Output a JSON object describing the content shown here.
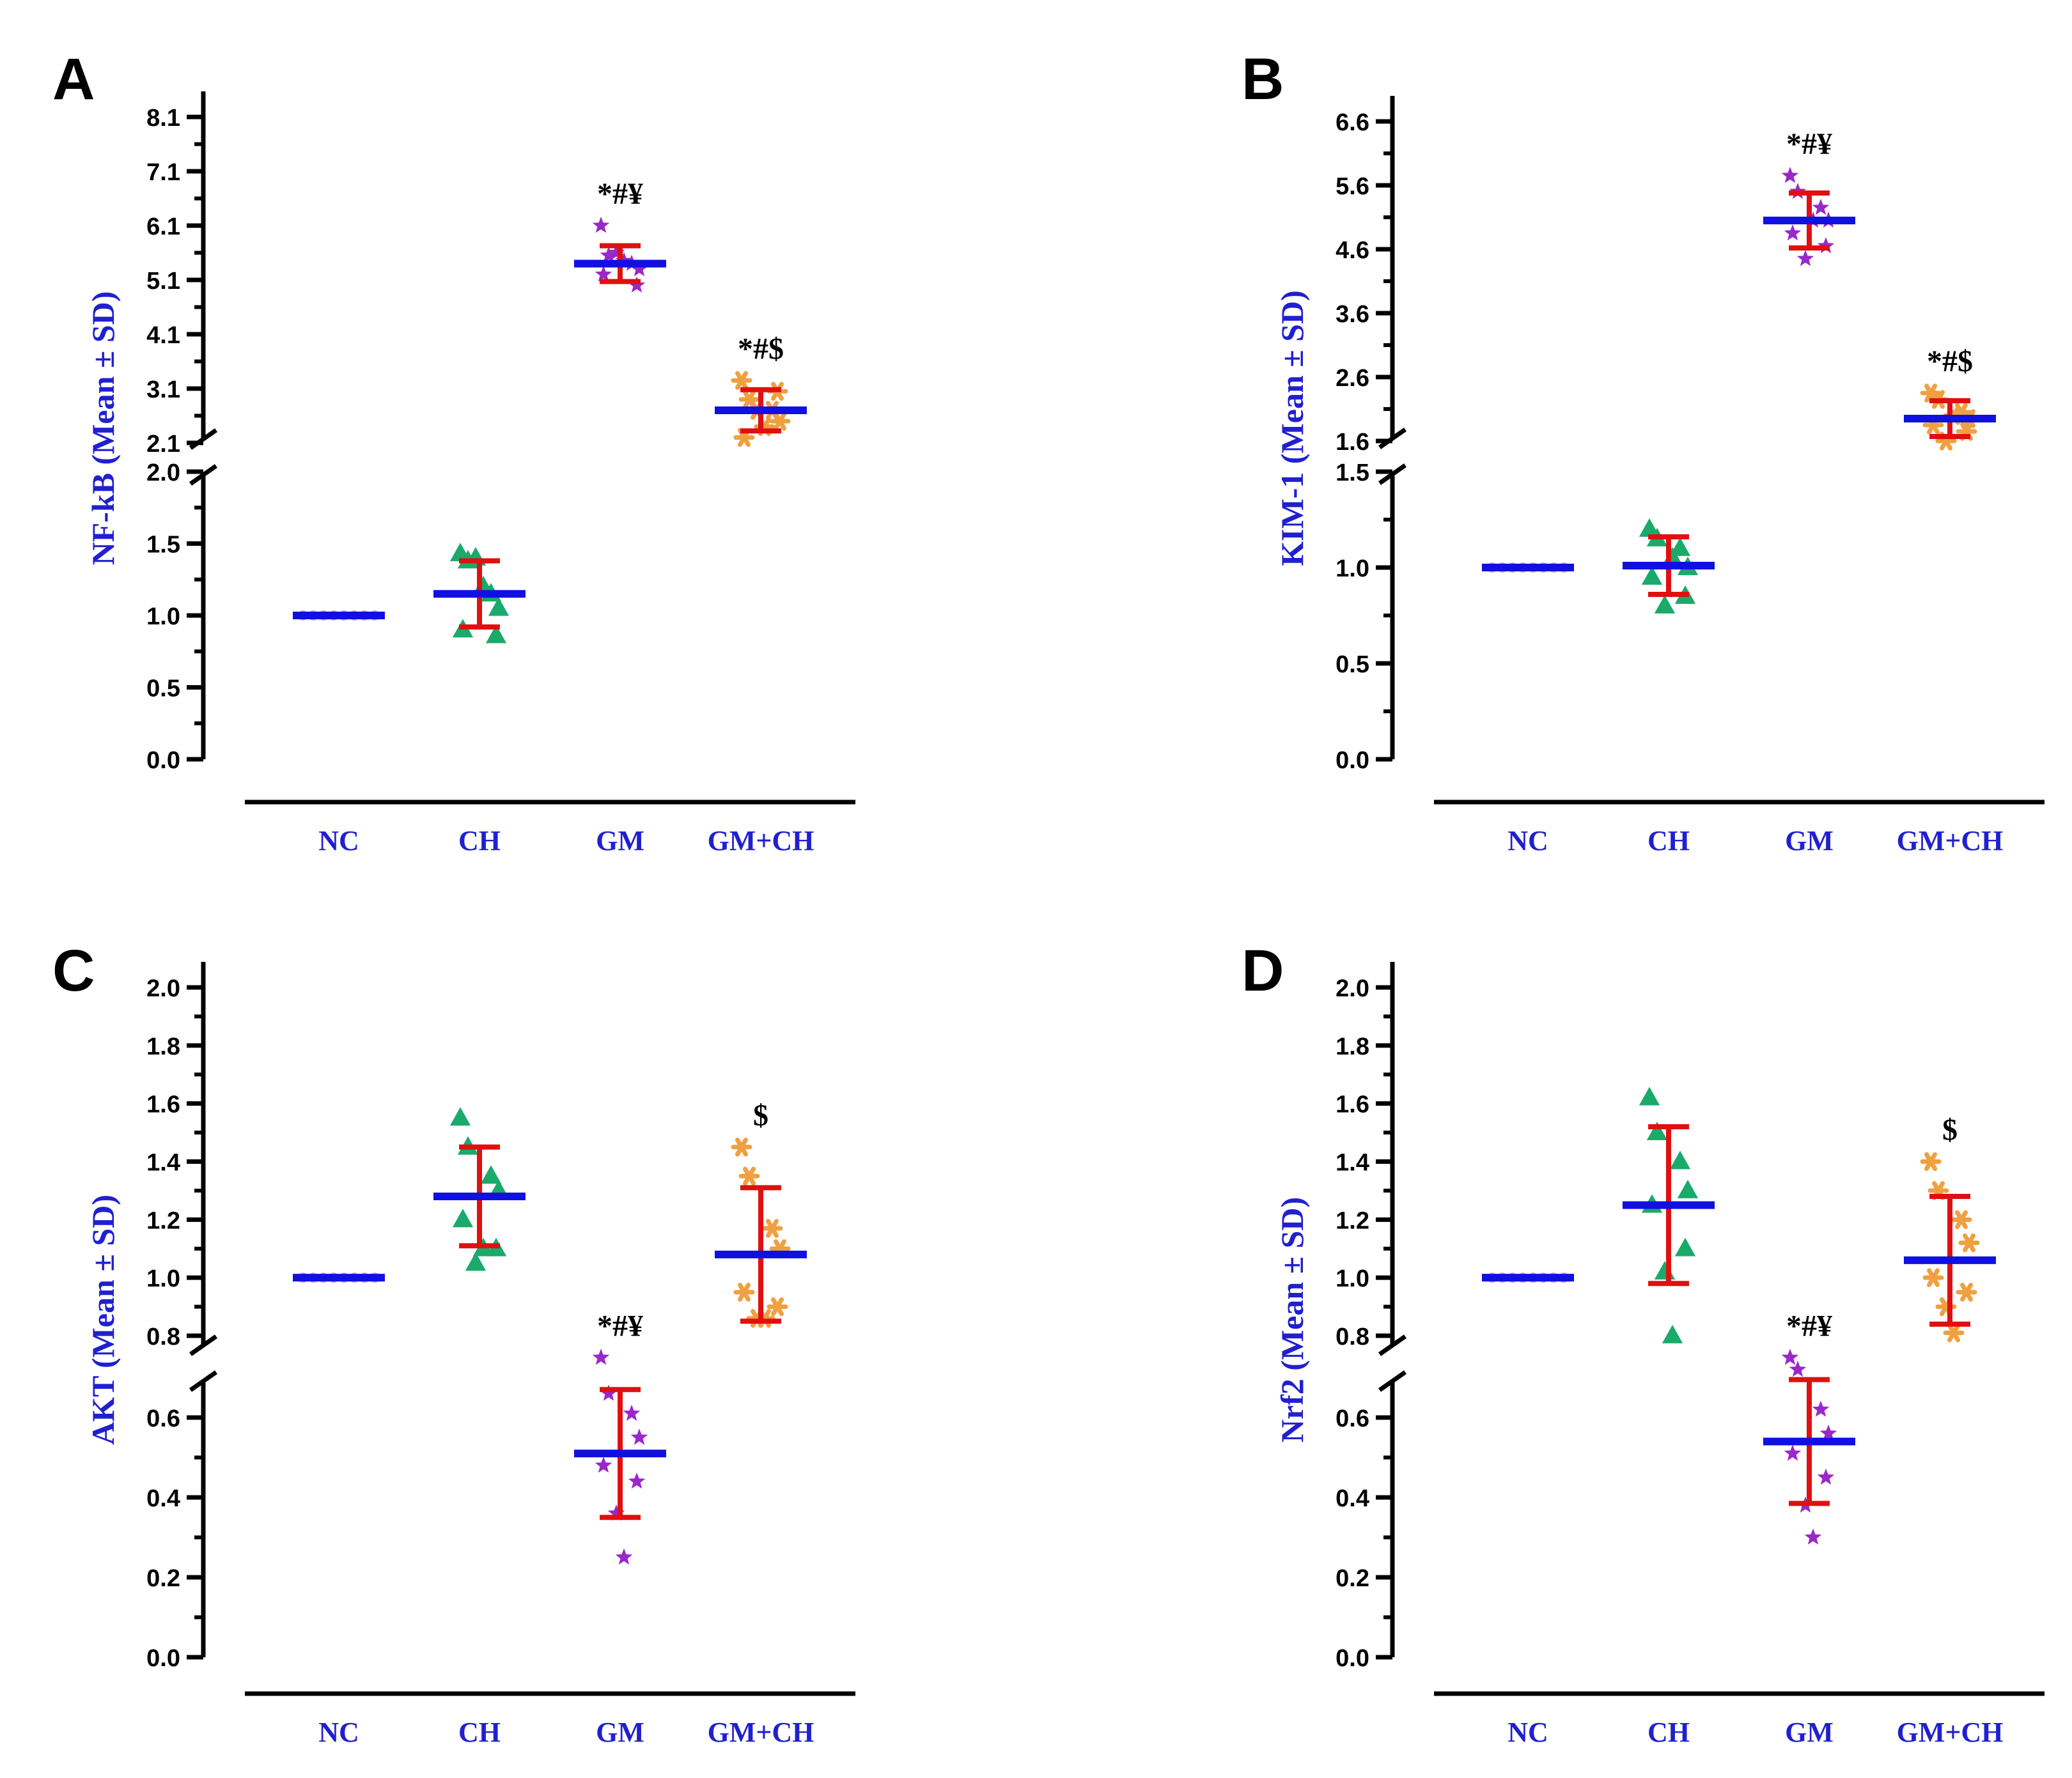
{
  "colors": {
    "axis": "#000000",
    "mean": "#1010e0",
    "error": "#e01010",
    "category_text": "#2020d0",
    "NC": "#c8a8d8",
    "CH": "#1aaa6a",
    "GM": "#9a28c8",
    "GM+CH": "#f0a040"
  },
  "chart_data": [
    {
      "panel": "A",
      "type": "scatter",
      "ylabel": "NF-kB (Mean ± SD)",
      "categories": [
        "NC",
        "CH",
        "GM",
        "GM+CH"
      ],
      "axis_break": {
        "lower_range": [
          0,
          2.0
        ],
        "upper_range": [
          2.1,
          8.1
        ]
      },
      "lower_ticks": [
        "0.0",
        "0.5",
        "1.0",
        "1.5",
        "2.0"
      ],
      "upper_ticks": [
        "2.1",
        "3.1",
        "4.1",
        "5.1",
        "6.1",
        "7.1",
        "8.1"
      ],
      "means": [
        1.0,
        1.15,
        5.4,
        2.7
      ],
      "sd": [
        0.0,
        0.23,
        0.33,
        0.38
      ],
      "points": [
        [
          1,
          1,
          1,
          1,
          1,
          1,
          1,
          1
        ],
        [
          1.43,
          1.38,
          1.15,
          1.05,
          0.9,
          0.86,
          1.4,
          1.2
        ],
        [
          6.1,
          5.55,
          5.4,
          5.3,
          5.2,
          5.0,
          5.6,
          5.45
        ],
        [
          3.25,
          2.9,
          2.7,
          2.5,
          2.2,
          3.05,
          2.7,
          2.4
        ]
      ],
      "annotations": [
        "",
        "",
        "*#¥",
        "*#$"
      ]
    },
    {
      "panel": "B",
      "type": "scatter",
      "ylabel": "KIM-1 (Mean ± SD)",
      "categories": [
        "NC",
        "CH",
        "GM",
        "GM+CH"
      ],
      "axis_break": {
        "lower_range": [
          0,
          1.5
        ],
        "upper_range": [
          1.6,
          6.6
        ]
      },
      "lower_ticks": [
        "0.0",
        "0.5",
        "1.0",
        "1.5"
      ],
      "upper_ticks": [
        "1.6",
        "2.6",
        "3.6",
        "4.6",
        "5.6",
        "6.6"
      ],
      "means": [
        1.0,
        1.01,
        5.05,
        1.95
      ],
      "sd": [
        0.0,
        0.15,
        0.43,
        0.28
      ],
      "points": [
        [
          1,
          1,
          1,
          1,
          1,
          1,
          1,
          1
        ],
        [
          1.2,
          1.15,
          1.1,
          1.0,
          0.95,
          0.85,
          0.8,
          1.05
        ],
        [
          5.75,
          5.5,
          5.25,
          5.05,
          4.85,
          4.65,
          4.45,
          5.05
        ],
        [
          2.35,
          2.25,
          2.05,
          1.95,
          1.85,
          1.75,
          1.6,
          2.0
        ]
      ],
      "annotations": [
        "",
        "",
        "*#¥",
        "*#$"
      ]
    },
    {
      "panel": "C",
      "type": "scatter",
      "ylabel": "AKT (Mean ± SD)",
      "categories": [
        "NC",
        "CH",
        "GM",
        "GM+CH"
      ],
      "axis_break": {
        "lower_range": [
          0,
          0.8
        ],
        "upper_range": [
          0.8,
          2.0
        ]
      },
      "lower_ticks": [
        "0.0",
        "0.2",
        "0.4",
        "0.6"
      ],
      "upper_ticks": [
        "0.8",
        "1.0",
        "1.2",
        "1.4",
        "1.6",
        "1.8",
        "2.0"
      ],
      "means": [
        1.0,
        1.28,
        0.51,
        1.08
      ],
      "sd": [
        0.0,
        0.17,
        0.16,
        0.23
      ],
      "points": [
        [
          1,
          1,
          1,
          1,
          1,
          1,
          1,
          1
        ],
        [
          1.55,
          1.45,
          1.35,
          1.3,
          1.2,
          1.1,
          1.05,
          1.1
        ],
        [
          0.75,
          0.66,
          0.61,
          0.55,
          0.48,
          0.44,
          0.36,
          0.25
        ],
        [
          1.45,
          1.35,
          1.17,
          1.1,
          0.95,
          0.9,
          0.86,
          0.86
        ]
      ],
      "annotations": [
        "",
        "",
        "*#¥",
        "$"
      ]
    },
    {
      "panel": "D",
      "type": "scatter",
      "ylabel": "Nrf2 (Mean ± SD)",
      "categories": [
        "NC",
        "CH",
        "GM",
        "GM+CH"
      ],
      "axis_break": {
        "lower_range": [
          0,
          0.8
        ],
        "upper_range": [
          0.8,
          2.0
        ]
      },
      "lower_ticks": [
        "0.0",
        "0.2",
        "0.4",
        "0.6"
      ],
      "upper_ticks": [
        "0.8",
        "1.0",
        "1.2",
        "1.4",
        "1.6",
        "1.8",
        "2.0"
      ],
      "means": [
        1.0,
        1.25,
        0.54,
        1.06
      ],
      "sd": [
        0.0,
        0.27,
        0.155,
        0.22
      ],
      "points": [
        [
          1,
          1,
          1,
          1,
          1,
          1,
          1,
          1
        ],
        [
          1.62,
          1.5,
          1.4,
          1.3,
          1.25,
          1.1,
          1.02,
          0.8
        ],
        [
          0.75,
          0.72,
          0.62,
          0.56,
          0.51,
          0.45,
          0.38,
          0.3
        ],
        [
          1.4,
          1.3,
          1.2,
          1.12,
          1.0,
          0.95,
          0.9,
          0.81
        ]
      ],
      "annotations": [
        "",
        "",
        "*#¥",
        "$"
      ]
    }
  ]
}
